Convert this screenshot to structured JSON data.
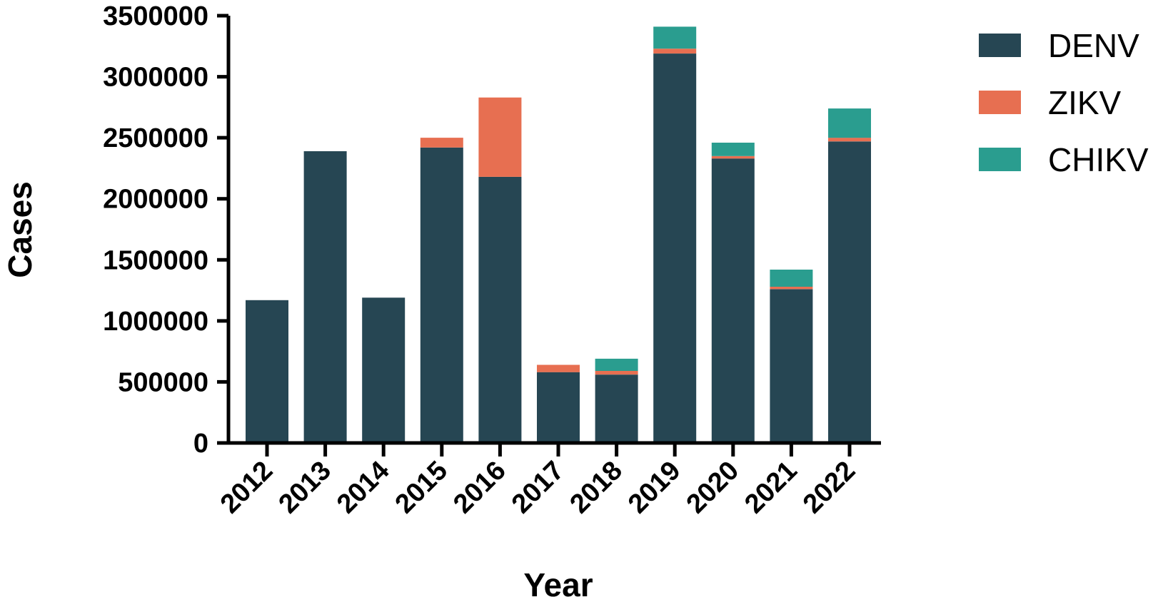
{
  "chart_data": {
    "type": "bar",
    "stacked": true,
    "title": "",
    "xlabel": "Year",
    "ylabel": "Cases",
    "ylim": [
      0,
      3500000
    ],
    "yticks": [
      "0",
      "500000",
      "1000000",
      "1500000",
      "2000000",
      "2500000",
      "3000000",
      "3500000"
    ],
    "categories": [
      "2012",
      "2013",
      "2014",
      "2015",
      "2016",
      "2017",
      "2018",
      "2019",
      "2020",
      "2021",
      "2022"
    ],
    "series": [
      {
        "name": "DENV",
        "color": "#264653",
        "values": [
          1170000,
          2390000,
          1190000,
          2420000,
          2180000,
          580000,
          560000,
          3190000,
          2330000,
          1260000,
          2470000
        ]
      },
      {
        "name": "ZIKV",
        "color": "#E76F51",
        "values": [
          0,
          0,
          0,
          80000,
          650000,
          60000,
          30000,
          40000,
          20000,
          20000,
          30000
        ]
      },
      {
        "name": "CHIKV",
        "color": "#2A9D8F",
        "values": [
          0,
          0,
          0,
          0,
          0,
          0,
          100000,
          180000,
          110000,
          140000,
          240000
        ]
      }
    ],
    "grid": false,
    "legend_position": "right"
  }
}
